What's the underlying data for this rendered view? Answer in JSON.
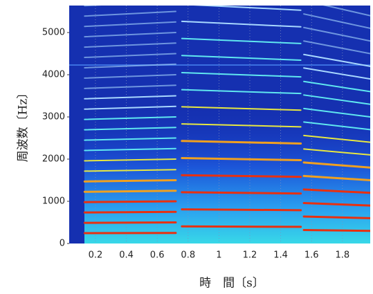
{
  "chart_data": {
    "type": "spectrogram",
    "x_label": "時　間〔s〕",
    "y_label": "周波数〔Hz〕",
    "xlim": [
      0.03,
      1.98
    ],
    "ylim": [
      0,
      5640
    ],
    "xticks": [
      0.2,
      0.4,
      0.6,
      0.8,
      1,
      1.2,
      1.4,
      1.6,
      1.8
    ],
    "yticks": [
      0,
      1000,
      2000,
      3000,
      4000,
      5000
    ],
    "segments": [
      {
        "x": [
          0.13,
          0.72
        ],
        "values": [
          245,
          250
        ]
      },
      {
        "x": [
          0.76,
          1.53
        ],
        "values": [
          405,
          395
        ]
      },
      {
        "x": [
          1.55,
          1.98
        ],
        "values": [
          320,
          300
        ]
      }
    ]
  }
}
